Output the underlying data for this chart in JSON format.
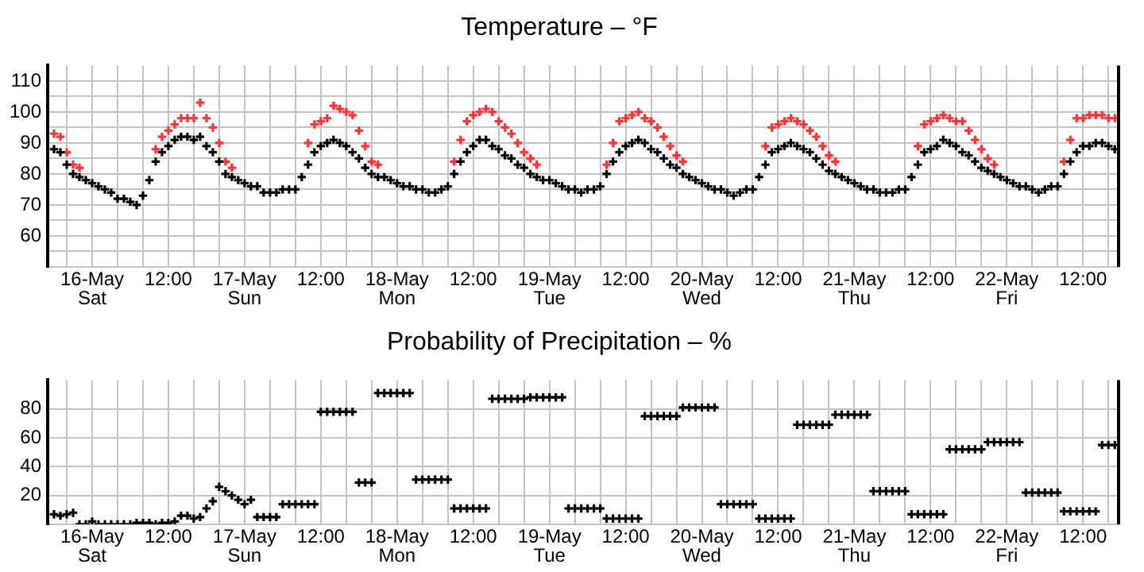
{
  "chart_data": [
    {
      "type": "scatter",
      "title": "Temperature – °F",
      "marker": "cross",
      "grid": true,
      "legend": false,
      "x": [
        "--05-15T18:00",
        "--05-15T19:00",
        "--05-15T20:00",
        "--05-15T21:00",
        "--05-15T22:00",
        "--05-15T23:00",
        "--05-16T00:00",
        "--05-16T01:00",
        "--05-16T02:00",
        "--05-16T03:00",
        "--05-16T04:00",
        "--05-16T05:00",
        "--05-16T06:00",
        "--05-16T07:00",
        "--05-16T08:00",
        "--05-16T09:00",
        "--05-16T10:00",
        "--05-16T11:00",
        "--05-16T12:00",
        "--05-16T13:00",
        "--05-16T14:00",
        "--05-16T15:00",
        "--05-16T16:00",
        "--05-16T17:00",
        "--05-16T18:00",
        "--05-16T19:00",
        "--05-16T20:00",
        "--05-16T21:00",
        "--05-16T22:00",
        "--05-16T23:00",
        "--05-17T00:00",
        "--05-17T01:00",
        "--05-17T02:00",
        "--05-17T03:00",
        "--05-17T04:00",
        "--05-17T05:00",
        "--05-17T06:00",
        "--05-17T07:00",
        "--05-17T08:00",
        "--05-17T09:00",
        "--05-17T10:00",
        "--05-17T11:00",
        "--05-17T12:00",
        "--05-17T13:00",
        "--05-17T14:00",
        "--05-17T15:00",
        "--05-17T16:00",
        "--05-17T17:00",
        "--05-17T18:00",
        "--05-17T19:00",
        "--05-17T20:00",
        "--05-17T21:00",
        "--05-17T22:00",
        "--05-17T23:00",
        "--05-18T00:00",
        "--05-18T01:00",
        "--05-18T02:00",
        "--05-18T03:00",
        "--05-18T04:00",
        "--05-18T05:00",
        "--05-18T06:00",
        "--05-18T07:00",
        "--05-18T08:00",
        "--05-18T09:00",
        "--05-18T10:00",
        "--05-18T11:00",
        "--05-18T12:00",
        "--05-18T13:00",
        "--05-18T14:00",
        "--05-18T15:00",
        "--05-18T16:00",
        "--05-18T17:00",
        "--05-18T18:00",
        "--05-18T19:00",
        "--05-18T20:00",
        "--05-18T21:00",
        "--05-18T22:00",
        "--05-18T23:00",
        "--05-19T00:00",
        "--05-19T01:00",
        "--05-19T02:00",
        "--05-19T03:00",
        "--05-19T04:00",
        "--05-19T05:00",
        "--05-19T06:00",
        "--05-19T07:00",
        "--05-19T08:00",
        "--05-19T09:00",
        "--05-19T10:00",
        "--05-19T11:00",
        "--05-19T12:00",
        "--05-19T13:00",
        "--05-19T14:00",
        "--05-19T15:00",
        "--05-19T16:00",
        "--05-19T17:00",
        "--05-19T18:00",
        "--05-19T19:00",
        "--05-19T20:00",
        "--05-19T21:00",
        "--05-19T22:00",
        "--05-19T23:00",
        "--05-20T00:00",
        "--05-20T01:00",
        "--05-20T02:00",
        "--05-20T03:00",
        "--05-20T04:00",
        "--05-20T05:00",
        "--05-20T06:00",
        "--05-20T07:00",
        "--05-20T08:00",
        "--05-20T09:00",
        "--05-20T10:00",
        "--05-20T11:00",
        "--05-20T12:00",
        "--05-20T13:00",
        "--05-20T14:00",
        "--05-20T15:00",
        "--05-20T16:00",
        "--05-20T17:00",
        "--05-20T18:00",
        "--05-20T19:00",
        "--05-20T20:00",
        "--05-20T21:00",
        "--05-20T22:00",
        "--05-20T23:00",
        "--05-21T00:00",
        "--05-21T01:00",
        "--05-21T02:00",
        "--05-21T03:00",
        "--05-21T04:00",
        "--05-21T05:00",
        "--05-21T06:00",
        "--05-21T07:00",
        "--05-21T08:00",
        "--05-21T09:00",
        "--05-21T10:00",
        "--05-21T11:00",
        "--05-21T12:00",
        "--05-21T13:00",
        "--05-21T14:00",
        "--05-21T15:00",
        "--05-21T16:00",
        "--05-21T17:00",
        "--05-21T18:00",
        "--05-21T19:00",
        "--05-21T20:00",
        "--05-21T21:00",
        "--05-21T22:00",
        "--05-21T23:00",
        "--05-22T00:00",
        "--05-22T01:00",
        "--05-22T02:00",
        "--05-22T03:00",
        "--05-22T04:00",
        "--05-22T05:00",
        "--05-22T06:00",
        "--05-22T07:00",
        "--05-22T08:00",
        "--05-22T09:00",
        "--05-22T10:00",
        "--05-22T11:00",
        "--05-22T12:00",
        "--05-22T13:00",
        "--05-22T14:00",
        "--05-22T15:00",
        "--05-22T16:00",
        "--05-22T17:00"
      ],
      "series": [
        {
          "color": "#000000",
          "values": [
            88,
            87,
            83,
            80,
            79,
            78,
            77,
            76,
            75,
            74,
            72,
            72,
            71,
            70,
            73,
            78,
            84,
            87,
            89,
            91,
            92,
            92,
            91,
            92,
            89,
            87,
            84,
            80,
            79,
            78,
            77,
            76,
            76,
            74,
            74,
            74,
            75,
            75,
            75,
            79,
            83,
            87,
            89,
            90,
            91,
            90,
            89,
            87,
            85,
            82,
            80,
            79,
            79,
            78,
            77,
            76,
            76,
            75,
            75,
            74,
            74,
            75,
            76,
            80,
            84,
            87,
            89,
            91,
            91,
            89,
            88,
            86,
            85,
            83,
            82,
            80,
            79,
            78,
            78,
            77,
            76,
            75,
            75,
            74,
            75,
            75,
            76,
            80,
            84,
            87,
            89,
            90,
            91,
            90,
            88,
            87,
            85,
            83,
            82,
            80,
            79,
            78,
            77,
            76,
            75,
            75,
            74,
            73,
            74,
            75,
            75,
            79,
            83,
            87,
            88,
            89,
            90,
            89,
            88,
            87,
            85,
            83,
            81,
            80,
            79,
            78,
            77,
            76,
            75,
            75,
            74,
            74,
            74,
            75,
            75,
            79,
            83,
            87,
            88,
            89,
            91,
            90,
            89,
            87,
            86,
            84,
            82,
            81,
            80,
            79,
            78,
            77,
            76,
            76,
            75,
            74,
            75,
            76,
            76,
            80,
            84,
            87,
            89,
            89,
            90,
            90,
            89,
            88
          ]
        },
        {
          "color": "#ff3333",
          "values": [
            93,
            92,
            87,
            83,
            82,
            null,
            null,
            null,
            null,
            null,
            null,
            null,
            null,
            null,
            null,
            null,
            88,
            92,
            94,
            96,
            98,
            98,
            98,
            103,
            98,
            95,
            90,
            84,
            82,
            null,
            null,
            null,
            null,
            null,
            null,
            null,
            null,
            null,
            null,
            null,
            90,
            96,
            97,
            98,
            102,
            101,
            100,
            99,
            94,
            89,
            84,
            83,
            null,
            null,
            null,
            null,
            null,
            null,
            null,
            null,
            null,
            null,
            null,
            84,
            91,
            97,
            99,
            100,
            101,
            100,
            97,
            95,
            93,
            90,
            87,
            85,
            83,
            null,
            null,
            null,
            null,
            null,
            null,
            null,
            null,
            null,
            null,
            83,
            90,
            97,
            98,
            99,
            100,
            98,
            97,
            95,
            92,
            89,
            86,
            84,
            null,
            null,
            null,
            null,
            null,
            null,
            null,
            null,
            null,
            null,
            null,
            null,
            89,
            95,
            96,
            97,
            98,
            97,
            96,
            94,
            92,
            89,
            86,
            84,
            null,
            null,
            null,
            null,
            null,
            null,
            null,
            null,
            null,
            null,
            null,
            null,
            89,
            96,
            97,
            98,
            99,
            98,
            97,
            97,
            94,
            91,
            88,
            85,
            83,
            null,
            null,
            null,
            null,
            null,
            null,
            null,
            null,
            null,
            null,
            84,
            91,
            98,
            98,
            99,
            99,
            99,
            98,
            98
          ]
        }
      ],
      "xlim": [
        "--05-15T17:00",
        "--05-22T17:36"
      ],
      "xticks": [
        {
          "value": "--05-15T20:00",
          "label": null
        },
        {
          "value": "--05-16T00:00",
          "label": "16-May\nSat"
        },
        {
          "value": "--05-16T04:00",
          "label": null
        },
        {
          "value": "--05-16T08:00",
          "label": null
        },
        {
          "value": "--05-16T12:00",
          "label": "12:00"
        },
        {
          "value": "--05-16T16:00",
          "label": null
        },
        {
          "value": "--05-16T20:00",
          "label": null
        },
        {
          "value": "--05-17T00:00",
          "label": "17-May\nSun"
        },
        {
          "value": "--05-17T04:00",
          "label": null
        },
        {
          "value": "--05-17T08:00",
          "label": null
        },
        {
          "value": "--05-17T12:00",
          "label": "12:00"
        },
        {
          "value": "--05-17T16:00",
          "label": null
        },
        {
          "value": "--05-17T20:00",
          "label": null
        },
        {
          "value": "--05-18T00:00",
          "label": "18-May\nMon"
        },
        {
          "value": "--05-18T04:00",
          "label": null
        },
        {
          "value": "--05-18T08:00",
          "label": null
        },
        {
          "value": "--05-18T12:00",
          "label": "12:00"
        },
        {
          "value": "--05-18T16:00",
          "label": null
        },
        {
          "value": "--05-18T20:00",
          "label": null
        },
        {
          "value": "--05-19T00:00",
          "label": "19-May\nTue"
        },
        {
          "value": "--05-19T04:00",
          "label": null
        },
        {
          "value": "--05-19T08:00",
          "label": null
        },
        {
          "value": "--05-19T12:00",
          "label": "12:00"
        },
        {
          "value": "--05-19T16:00",
          "label": null
        },
        {
          "value": "--05-19T20:00",
          "label": null
        },
        {
          "value": "--05-20T00:00",
          "label": "20-May\nWed"
        },
        {
          "value": "--05-20T04:00",
          "label": null
        },
        {
          "value": "--05-20T08:00",
          "label": null
        },
        {
          "value": "--05-20T12:00",
          "label": "12:00"
        },
        {
          "value": "--05-20T16:00",
          "label": null
        },
        {
          "value": "--05-20T20:00",
          "label": null
        },
        {
          "value": "--05-21T00:00",
          "label": "21-May\nThu"
        },
        {
          "value": "--05-21T04:00",
          "label": null
        },
        {
          "value": "--05-21T08:00",
          "label": null
        },
        {
          "value": "--05-21T12:00",
          "label": "12:00"
        },
        {
          "value": "--05-21T16:00",
          "label": null
        },
        {
          "value": "--05-21T20:00",
          "label": null
        },
        {
          "value": "--05-22T00:00",
          "label": "22-May\nFri"
        },
        {
          "value": "--05-22T04:00",
          "label": null
        },
        {
          "value": "--05-22T08:00",
          "label": null
        },
        {
          "value": "--05-22T12:00",
          "label": "12:00"
        },
        {
          "value": "--05-22T16:00",
          "label": null
        }
      ],
      "ylim": [
        50,
        115
      ],
      "yticks": [
        {
          "value": 55,
          "label": null
        },
        60,
        {
          "value": 65,
          "label": null
        },
        70,
        {
          "value": 75,
          "label": null
        },
        80,
        {
          "value": 85,
          "label": null
        },
        90,
        {
          "value": 95,
          "label": null
        },
        100,
        {
          "value": 105,
          "label": null
        },
        110
      ]
    },
    {
      "type": "scatter",
      "title": "Probability of Precipitation – %",
      "marker": "cross",
      "grid": true,
      "legend": false,
      "x": [
        "--05-15T18:00",
        "--05-15T19:00",
        "--05-15T20:00",
        "--05-15T21:00",
        "--05-15T22:00",
        "--05-15T23:00",
        "--05-16T00:00",
        "--05-16T01:00",
        "--05-16T02:00",
        "--05-16T03:00",
        "--05-16T04:00",
        "--05-16T05:00",
        "--05-16T06:00",
        "--05-16T07:00",
        "--05-16T08:00",
        "--05-16T09:00",
        "--05-16T10:00",
        "--05-16T11:00",
        "--05-16T12:00",
        "--05-16T13:00",
        "--05-16T14:00",
        "--05-16T15:00",
        "--05-16T16:00",
        "--05-16T17:00",
        "--05-16T18:00",
        "--05-16T19:00",
        "--05-16T20:00",
        "--05-16T21:00",
        "--05-16T22:00",
        "--05-16T23:00",
        "--05-17T00:00",
        "--05-17T01:00",
        "--05-17T02:00",
        "--05-17T03:00",
        "--05-17T04:00",
        "--05-17T05:00",
        "--05-17T06:00",
        "--05-17T07:00",
        "--05-17T08:00",
        "--05-17T09:00",
        "--05-17T10:00",
        "--05-17T11:00",
        "--05-17T12:00",
        "--05-17T13:00",
        "--05-17T14:00",
        "--05-17T15:00",
        "--05-17T16:00",
        "--05-17T17:00",
        "--05-17T18:00",
        "--05-17T19:00",
        "--05-17T20:00",
        "--05-17T21:00",
        "--05-17T22:00",
        "--05-17T23:00",
        "--05-18T00:00",
        "--05-18T01:00",
        "--05-18T02:00",
        "--05-18T03:00",
        "--05-18T04:00",
        "--05-18T05:00",
        "--05-18T06:00",
        "--05-18T07:00",
        "--05-18T08:00",
        "--05-18T09:00",
        "--05-18T10:00",
        "--05-18T11:00",
        "--05-18T12:00",
        "--05-18T13:00",
        "--05-18T14:00",
        "--05-18T15:00",
        "--05-18T16:00",
        "--05-18T17:00",
        "--05-18T18:00",
        "--05-18T19:00",
        "--05-18T20:00",
        "--05-18T21:00",
        "--05-18T22:00",
        "--05-18T23:00",
        "--05-19T00:00",
        "--05-19T01:00",
        "--05-19T02:00",
        "--05-19T03:00",
        "--05-19T04:00",
        "--05-19T05:00",
        "--05-19T06:00",
        "--05-19T07:00",
        "--05-19T08:00",
        "--05-19T09:00",
        "--05-19T10:00",
        "--05-19T11:00",
        "--05-19T12:00",
        "--05-19T13:00",
        "--05-19T14:00",
        "--05-19T15:00",
        "--05-19T16:00",
        "--05-19T17:00",
        "--05-19T18:00",
        "--05-19T19:00",
        "--05-19T20:00",
        "--05-19T21:00",
        "--05-19T22:00",
        "--05-19T23:00",
        "--05-20T00:00",
        "--05-20T01:00",
        "--05-20T02:00",
        "--05-20T03:00",
        "--05-20T04:00",
        "--05-20T05:00",
        "--05-20T06:00",
        "--05-20T07:00",
        "--05-20T08:00",
        "--05-20T09:00",
        "--05-20T10:00",
        "--05-20T11:00",
        "--05-20T12:00",
        "--05-20T13:00",
        "--05-20T14:00",
        "--05-20T15:00",
        "--05-20T16:00",
        "--05-20T17:00",
        "--05-20T18:00",
        "--05-20T19:00",
        "--05-20T20:00",
        "--05-20T21:00",
        "--05-20T22:00",
        "--05-20T23:00",
        "--05-21T00:00",
        "--05-21T01:00",
        "--05-21T02:00",
        "--05-21T03:00",
        "--05-21T04:00",
        "--05-21T05:00",
        "--05-21T06:00",
        "--05-21T07:00",
        "--05-21T08:00",
        "--05-21T09:00",
        "--05-21T10:00",
        "--05-21T11:00",
        "--05-21T12:00",
        "--05-21T13:00",
        "--05-21T14:00",
        "--05-21T15:00",
        "--05-21T16:00",
        "--05-21T17:00",
        "--05-21T18:00",
        "--05-21T19:00",
        "--05-21T20:00",
        "--05-21T21:00",
        "--05-21T22:00",
        "--05-21T23:00",
        "--05-22T00:00",
        "--05-22T01:00",
        "--05-22T02:00",
        "--05-22T03:00",
        "--05-22T04:00",
        "--05-22T05:00",
        "--05-22T06:00",
        "--05-22T07:00",
        "--05-22T08:00",
        "--05-22T09:00",
        "--05-22T10:00",
        "--05-22T11:00",
        "--05-22T12:00",
        "--05-22T13:00",
        "--05-22T14:00",
        "--05-22T15:00",
        "--05-22T16:00",
        "--05-22T17:00"
      ],
      "series": [
        {
          "color": "#000000",
          "values": [
            7,
            6,
            7,
            8,
            0,
            0,
            2,
            0,
            0,
            0,
            0,
            0,
            0,
            1,
            1,
            1,
            0,
            1,
            1,
            2,
            6,
            6,
            4,
            5,
            11,
            16,
            26,
            23,
            20,
            17,
            14,
            17,
            5,
            5,
            5,
            5,
            14,
            14,
            14,
            14,
            14,
            14,
            78,
            78,
            78,
            78,
            78,
            78,
            29,
            29,
            29,
            91,
            91,
            91,
            91,
            91,
            91,
            31,
            31,
            31,
            31,
            31,
            31,
            11,
            11,
            11,
            11,
            11,
            11,
            87,
            87,
            87,
            87,
            87,
            87,
            88,
            88,
            88,
            88,
            88,
            88,
            11,
            11,
            11,
            11,
            11,
            11,
            4,
            4,
            4,
            4,
            4,
            4,
            75,
            75,
            75,
            75,
            75,
            75,
            81,
            81,
            81,
            81,
            81,
            81,
            14,
            14,
            14,
            14,
            14,
            14,
            4,
            4,
            4,
            4,
            4,
            4,
            69,
            69,
            69,
            69,
            69,
            69,
            76,
            76,
            76,
            76,
            76,
            76,
            23,
            23,
            23,
            23,
            23,
            23,
            7,
            7,
            7,
            7,
            7,
            7,
            52,
            52,
            52,
            52,
            52,
            52,
            57,
            57,
            57,
            57,
            57,
            57,
            22,
            22,
            22,
            22,
            22,
            22,
            9,
            9,
            9,
            9,
            9,
            9,
            55,
            55,
            55
          ]
        }
      ],
      "xlim": [
        "--05-15T17:00",
        "--05-22T17:36"
      ],
      "xticks": [
        {
          "value": "--05-15T20:00",
          "label": null
        },
        {
          "value": "--05-16T00:00",
          "label": "16-May\nSat"
        },
        {
          "value": "--05-16T04:00",
          "label": null
        },
        {
          "value": "--05-16T08:00",
          "label": null
        },
        {
          "value": "--05-16T12:00",
          "label": "12:00"
        },
        {
          "value": "--05-16T16:00",
          "label": null
        },
        {
          "value": "--05-16T20:00",
          "label": null
        },
        {
          "value": "--05-17T00:00",
          "label": "17-May\nSun"
        },
        {
          "value": "--05-17T04:00",
          "label": null
        },
        {
          "value": "--05-17T08:00",
          "label": null
        },
        {
          "value": "--05-17T12:00",
          "label": "12:00"
        },
        {
          "value": "--05-17T16:00",
          "label": null
        },
        {
          "value": "--05-17T20:00",
          "label": null
        },
        {
          "value": "--05-18T00:00",
          "label": "18-May\nMon"
        },
        {
          "value": "--05-18T04:00",
          "label": null
        },
        {
          "value": "--05-18T08:00",
          "label": null
        },
        {
          "value": "--05-18T12:00",
          "label": "12:00"
        },
        {
          "value": "--05-18T16:00",
          "label": null
        },
        {
          "value": "--05-18T20:00",
          "label": null
        },
        {
          "value": "--05-19T00:00",
          "label": "19-May\nTue"
        },
        {
          "value": "--05-19T04:00",
          "label": null
        },
        {
          "value": "--05-19T08:00",
          "label": null
        },
        {
          "value": "--05-19T12:00",
          "label": "12:00"
        },
        {
          "value": "--05-19T16:00",
          "label": null
        },
        {
          "value": "--05-19T20:00",
          "label": null
        },
        {
          "value": "--05-20T00:00",
          "label": "20-May\nWed"
        },
        {
          "value": "--05-20T04:00",
          "label": null
        },
        {
          "value": "--05-20T08:00",
          "label": null
        },
        {
          "value": "--05-20T12:00",
          "label": "12:00"
        },
        {
          "value": "--05-20T16:00",
          "label": null
        },
        {
          "value": "--05-20T20:00",
          "label": null
        },
        {
          "value": "--05-21T00:00",
          "label": "21-May\nThu"
        },
        {
          "value": "--05-21T04:00",
          "label": null
        },
        {
          "value": "--05-21T08:00",
          "label": null
        },
        {
          "value": "--05-21T12:00",
          "label": "12:00"
        },
        {
          "value": "--05-21T16:00",
          "label": null
        },
        {
          "value": "--05-21T20:00",
          "label": null
        },
        {
          "value": "--05-22T00:00",
          "label": "22-May\nFri"
        },
        {
          "value": "--05-22T04:00",
          "label": null
        },
        {
          "value": "--05-22T08:00",
          "label": null
        },
        {
          "value": "--05-22T12:00",
          "label": "12:00"
        },
        {
          "value": "--05-22T16:00",
          "label": null
        }
      ],
      "ylim": [
        0,
        100
      ],
      "yticks": [
        20,
        40,
        60,
        80
      ]
    }
  ]
}
